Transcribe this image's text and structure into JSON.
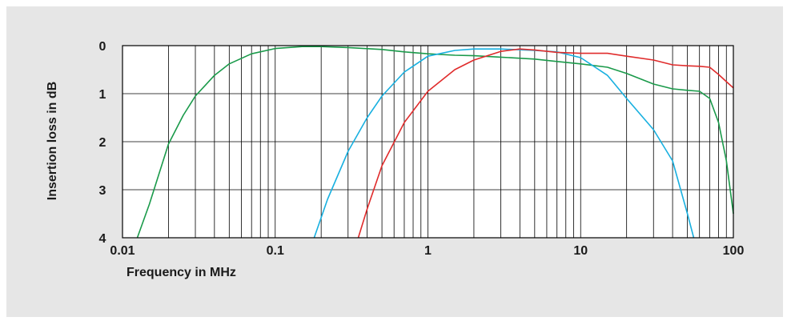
{
  "chart_data": {
    "type": "line",
    "xlabel": "Frequency in MHz",
    "ylabel": "Insertion loss in dB",
    "x_scale": "log",
    "xlim": [
      0.01,
      100
    ],
    "ylim": [
      4,
      0
    ],
    "y_inverted": true,
    "grid": true,
    "x_ticks": [
      {
        "value": 0.01,
        "label": "0.01"
      },
      {
        "value": 0.1,
        "label": "0.1"
      },
      {
        "value": 1,
        "label": "1"
      },
      {
        "value": 10,
        "label": "10"
      },
      {
        "value": 100,
        "label": "100"
      }
    ],
    "y_ticks": [
      {
        "value": 0,
        "label": "0"
      },
      {
        "value": 1,
        "label": "1"
      },
      {
        "value": 2,
        "label": "2"
      },
      {
        "value": 3,
        "label": "3"
      },
      {
        "value": 4,
        "label": "4"
      }
    ],
    "series": [
      {
        "color": "#1a9a4a",
        "points": [
          [
            0.0125,
            4.0
          ],
          [
            0.015,
            3.3
          ],
          [
            0.02,
            2.05
          ],
          [
            0.025,
            1.45
          ],
          [
            0.03,
            1.05
          ],
          [
            0.04,
            0.62
          ],
          [
            0.05,
            0.38
          ],
          [
            0.07,
            0.17
          ],
          [
            0.1,
            0.06
          ],
          [
            0.15,
            0.02
          ],
          [
            0.2,
            0.02
          ],
          [
            0.3,
            0.04
          ],
          [
            0.5,
            0.08
          ],
          [
            0.7,
            0.13
          ],
          [
            1,
            0.17
          ],
          [
            1.5,
            0.2
          ],
          [
            2,
            0.21
          ],
          [
            3,
            0.24
          ],
          [
            5,
            0.28
          ],
          [
            7,
            0.33
          ],
          [
            10,
            0.38
          ],
          [
            15,
            0.45
          ],
          [
            20,
            0.58
          ],
          [
            30,
            0.8
          ],
          [
            40,
            0.9
          ],
          [
            50,
            0.93
          ],
          [
            60,
            0.95
          ],
          [
            70,
            1.1
          ],
          [
            80,
            1.6
          ],
          [
            90,
            2.4
          ],
          [
            100,
            3.5
          ]
        ]
      },
      {
        "color": "#18b0e0",
        "points": [
          [
            0.18,
            4.0
          ],
          [
            0.22,
            3.2
          ],
          [
            0.3,
            2.2
          ],
          [
            0.4,
            1.5
          ],
          [
            0.5,
            1.05
          ],
          [
            0.7,
            0.55
          ],
          [
            1,
            0.22
          ],
          [
            1.5,
            0.1
          ],
          [
            2,
            0.07
          ],
          [
            3,
            0.07
          ],
          [
            5,
            0.1
          ],
          [
            7,
            0.13
          ],
          [
            10,
            0.25
          ],
          [
            15,
            0.62
          ],
          [
            20,
            1.1
          ],
          [
            30,
            1.75
          ],
          [
            40,
            2.4
          ],
          [
            50,
            3.5
          ],
          [
            55,
            4.0
          ]
        ]
      },
      {
        "color": "#e02b2b",
        "points": [
          [
            0.35,
            4.0
          ],
          [
            0.4,
            3.4
          ],
          [
            0.5,
            2.5
          ],
          [
            0.7,
            1.6
          ],
          [
            1,
            0.95
          ],
          [
            1.5,
            0.5
          ],
          [
            2,
            0.3
          ],
          [
            3,
            0.12
          ],
          [
            4,
            0.07
          ],
          [
            5,
            0.09
          ],
          [
            7,
            0.14
          ],
          [
            10,
            0.16
          ],
          [
            15,
            0.16
          ],
          [
            20,
            0.22
          ],
          [
            30,
            0.3
          ],
          [
            40,
            0.4
          ],
          [
            50,
            0.42
          ],
          [
            60,
            0.43
          ],
          [
            70,
            0.45
          ],
          [
            80,
            0.6
          ],
          [
            90,
            0.75
          ],
          [
            100,
            0.88
          ]
        ]
      }
    ]
  }
}
